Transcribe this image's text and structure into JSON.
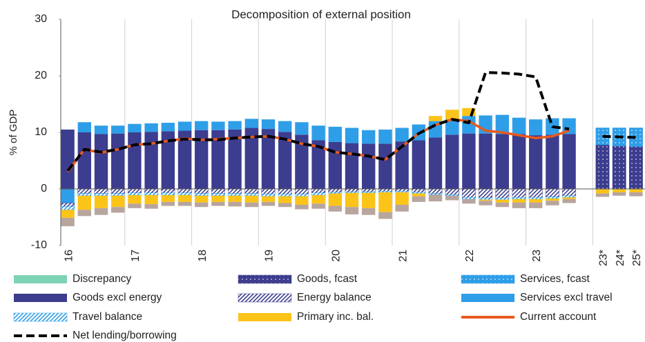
{
  "chart_data": {
    "type": "bar",
    "title": "Decomposition of external position",
    "y_label": "% of GDP",
    "categories": [
      "16",
      null,
      null,
      null,
      "17",
      null,
      null,
      null,
      "18",
      null,
      null,
      null,
      "19",
      null,
      null,
      null,
      "20",
      null,
      null,
      null,
      "21",
      null,
      null,
      null,
      "22",
      null,
      null,
      null,
      "23",
      null,
      null,
      null,
      "23*",
      "24*",
      "25*"
    ],
    "ylim": [
      -10,
      30
    ],
    "yticks": [
      -10,
      0,
      10,
      20,
      30
    ],
    "grid": "x",
    "series": [
      {
        "name": "Goods excl energy",
        "color": "#3c3d8e",
        "values": [
          10.5,
          10.0,
          9.7,
          9.8,
          10.0,
          10.1,
          10.2,
          10.3,
          10.4,
          10.4,
          10.5,
          10.8,
          10.6,
          10.1,
          9.6,
          8.6,
          8.3,
          8.1,
          8.0,
          8.0,
          8.4,
          8.6,
          9.1,
          9.6,
          9.8,
          9.8,
          9.7,
          9.7,
          9.5,
          9.6,
          9.7,
          null,
          null,
          null,
          null
        ]
      },
      {
        "name": "Goods, fcast",
        "color": "#3c3d8e",
        "pattern": "dots",
        "values": [
          null,
          null,
          null,
          null,
          null,
          null,
          null,
          null,
          null,
          null,
          null,
          null,
          null,
          null,
          null,
          null,
          null,
          null,
          null,
          null,
          null,
          null,
          null,
          null,
          null,
          null,
          null,
          null,
          null,
          null,
          null,
          null,
          7.8,
          7.6,
          7.5
        ]
      },
      {
        "name": "Services excl travel",
        "color": "#2f9ee8",
        "values": [
          -2.5,
          1.8,
          1.5,
          1.4,
          1.5,
          1.5,
          1.5,
          1.6,
          1.6,
          1.5,
          1.5,
          1.6,
          1.7,
          1.9,
          2.2,
          2.6,
          2.7,
          2.7,
          2.4,
          2.5,
          2.4,
          2.8,
          2.9,
          2.7,
          3.1,
          3.2,
          3.4,
          2.9,
          2.8,
          2.9,
          2.8,
          null,
          null,
          null,
          null
        ]
      },
      {
        "name": "Services, fcast",
        "color": "#2f9ee8",
        "pattern": "dots",
        "values": [
          null,
          null,
          null,
          null,
          null,
          null,
          null,
          null,
          null,
          null,
          null,
          null,
          null,
          null,
          null,
          null,
          null,
          null,
          null,
          null,
          null,
          null,
          null,
          null,
          null,
          null,
          null,
          null,
          null,
          null,
          null,
          null,
          3.0,
          3.2,
          3.3
        ]
      },
      {
        "name": "Energy balance",
        "color": "#3c3d8e",
        "pattern": "hatch",
        "values": [
          -0.6,
          -0.8,
          -0.8,
          -0.8,
          -0.7,
          -0.7,
          -0.7,
          -0.7,
          -0.8,
          -0.8,
          -0.8,
          -0.8,
          -0.9,
          -0.9,
          -0.9,
          -0.7,
          -0.6,
          -0.5,
          -0.5,
          -0.4,
          -0.4,
          -0.6,
          -0.8,
          -1.0,
          -1.5,
          -1.6,
          -1.6,
          -1.5,
          -1.5,
          -1.4,
          -1.2,
          null,
          null,
          null,
          null
        ]
      },
      {
        "name": "Travel balance",
        "color": "#2f9ee8",
        "pattern": "hatch",
        "values": [
          -0.6,
          -0.4,
          -0.4,
          -0.4,
          -0.4,
          -0.4,
          -0.4,
          -0.4,
          -0.4,
          -0.4,
          -0.4,
          -0.4,
          -0.4,
          -0.4,
          -0.4,
          -0.4,
          -0.2,
          -0.2,
          -0.2,
          -0.2,
          -0.2,
          -0.2,
          -0.2,
          -0.2,
          -0.3,
          -0.3,
          -0.3,
          -0.3,
          -0.3,
          -0.3,
          -0.3,
          null,
          null,
          null,
          null
        ]
      },
      {
        "name": "Primary inc. bal.",
        "color": "#fcc419",
        "values": [
          -1.4,
          -2.5,
          -2.2,
          -2.0,
          -1.5,
          -1.6,
          -1.2,
          -1.2,
          -1.2,
          -1.1,
          -1.1,
          -1.2,
          -1.0,
          -1.2,
          -1.5,
          -1.5,
          -2.2,
          -2.5,
          -2.7,
          -3.5,
          -2.2,
          -0.5,
          0.9,
          1.7,
          1.4,
          -0.2,
          -0.5,
          -0.6,
          -0.6,
          -0.4,
          -0.3,
          null,
          -0.8,
          -0.6,
          -0.6
        ]
      },
      {
        "color": "#b7a59e",
        "values": [
          -1.5,
          -1.1,
          -1.2,
          -1.0,
          -0.8,
          -0.8,
          -0.7,
          -0.7,
          -0.8,
          -0.7,
          -0.8,
          -0.8,
          -0.7,
          -0.7,
          -0.8,
          -0.9,
          -1.0,
          -1.3,
          -1.2,
          -1.2,
          -1.2,
          -1.0,
          -1.2,
          -0.8,
          -0.8,
          -0.8,
          -0.8,
          -1.0,
          -1.0,
          -0.8,
          -0.7,
          null,
          -0.6,
          -0.6,
          -0.7
        ]
      },
      {
        "name": "Discrepancy",
        "color": "#7fd3b5",
        "values": [
          0,
          0,
          0,
          0,
          0,
          0,
          0,
          0,
          0,
          0,
          0,
          0,
          0,
          0,
          0,
          0,
          0,
          0,
          0,
          0,
          0,
          0,
          0,
          0,
          0,
          0,
          0,
          0,
          0,
          0,
          0,
          null,
          null,
          null,
          null
        ]
      },
      {
        "name": "Current account",
        "type": "line",
        "color": "#e8591c",
        "values": [
          3.0,
          7.0,
          6.4,
          7.0,
          7.8,
          8.0,
          8.5,
          8.9,
          8.7,
          8.8,
          9.0,
          9.2,
          9.3,
          8.8,
          8.0,
          7.5,
          6.5,
          6.2,
          5.8,
          5.2,
          7.5,
          9.8,
          11.3,
          12.3,
          12.0,
          10.3,
          10.0,
          9.5,
          9.0,
          9.3,
          10.3,
          null,
          null,
          null,
          null
        ]
      },
      {
        "name": "Net lending/borrowing",
        "type": "line",
        "dash": true,
        "color": "#000000",
        "values": [
          3.2,
          7.0,
          6.5,
          7.0,
          7.8,
          8.0,
          8.5,
          8.8,
          8.7,
          8.7,
          9.0,
          9.2,
          9.3,
          8.8,
          8.0,
          7.5,
          6.5,
          6.2,
          5.8,
          5.2,
          7.5,
          9.8,
          11.3,
          12.3,
          11.7,
          20.6,
          20.5,
          20.3,
          19.8,
          11.0,
          10.6,
          null,
          9.3,
          9.2,
          9.1
        ]
      }
    ]
  }
}
